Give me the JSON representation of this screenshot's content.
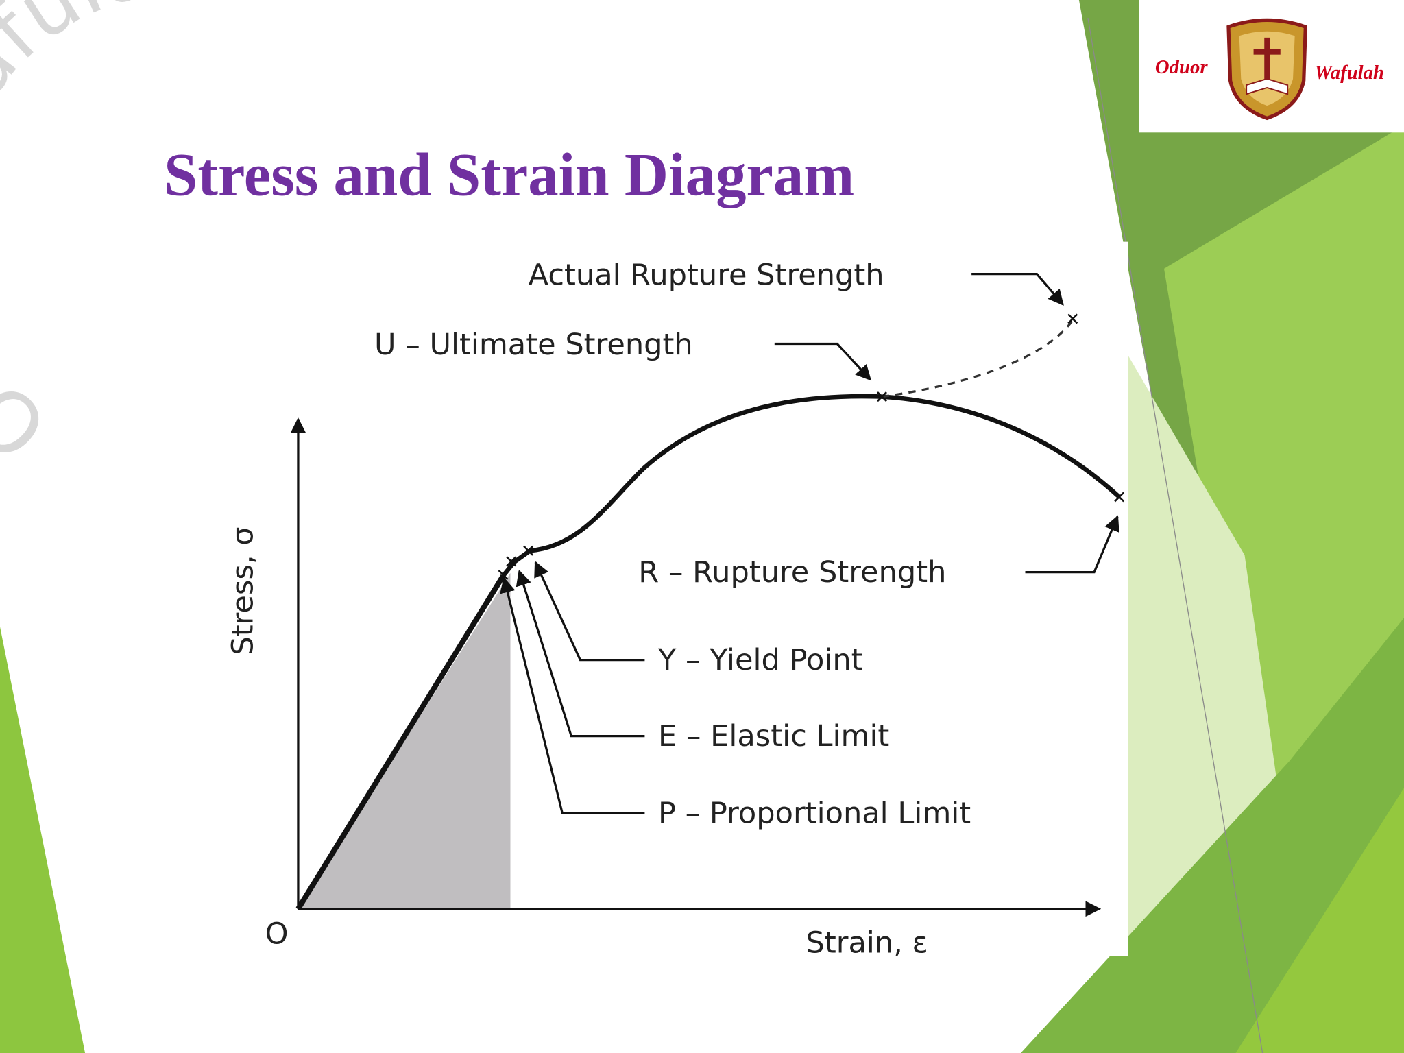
{
  "slide": {
    "title": "Stress and Strain Diagram",
    "watermark": "Oduor Wafulah",
    "logo": {
      "left": "Oduor",
      "right": "Wafulah"
    },
    "diagram": {
      "origin": "O",
      "x_axis_label": "Strain, ε",
      "y_axis_label": "Stress, σ",
      "labels": {
        "actual_rupture": "Actual Rupture Strength",
        "ultimate": "U – Ultimate Strength",
        "rupture": "R – Rupture Strength",
        "yield": "Y – Yield Point",
        "elastic": "E – Elastic Limit",
        "proportional": "P – Proportional Limit"
      }
    }
  }
}
